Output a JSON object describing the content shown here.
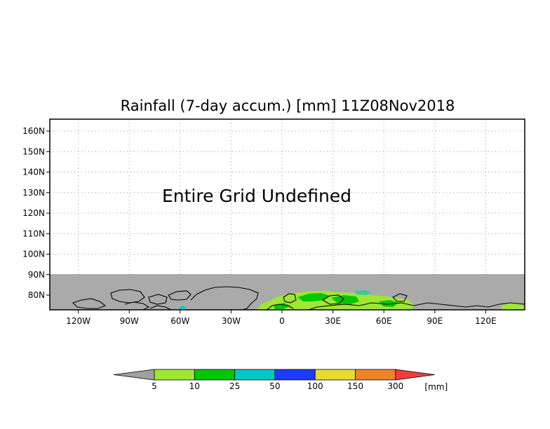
{
  "title": "Rainfall (7-day accum.) [mm] 11Z08Nov2018",
  "message": "Entire Grid Undefined",
  "y_ticks": [
    {
      "label": "160N",
      "lat": 160
    },
    {
      "label": "150N",
      "lat": 150
    },
    {
      "label": "140N",
      "lat": 140
    },
    {
      "label": "130N",
      "lat": 130
    },
    {
      "label": "120N",
      "lat": 120
    },
    {
      "label": "110N",
      "lat": 110
    },
    {
      "label": "100N",
      "lat": 100
    },
    {
      "label": "90N",
      "lat": 90
    },
    {
      "label": "80N",
      "lat": 80
    }
  ],
  "x_ticks": [
    {
      "label": "120W",
      "lon": -120
    },
    {
      "label": "90W",
      "lon": -90
    },
    {
      "label": "60W",
      "lon": -60
    },
    {
      "label": "30W",
      "lon": -30
    },
    {
      "label": "0",
      "lon": 0
    },
    {
      "label": "30E",
      "lon": 30
    },
    {
      "label": "60E",
      "lon": 60
    },
    {
      "label": "90E",
      "lon": 90
    },
    {
      "label": "120E",
      "lon": 120
    }
  ],
  "colorbar": {
    "unit": "[mm]",
    "below_color": "#a0a0a0",
    "above_color": "#f03c3c",
    "bins": [
      {
        "color": "#a0e632",
        "label": "5"
      },
      {
        "color": "#00c800",
        "label": "10"
      },
      {
        "color": "#00c8c8",
        "label": "25"
      },
      {
        "color": "#1e3cff",
        "label": "50"
      },
      {
        "color": "#e6dc32",
        "label": "100"
      },
      {
        "color": "#f08228",
        "label": "150"
      },
      {
        "color": "",
        "label": "300"
      }
    ]
  },
  "colors": {
    "undefined_gray": "#aaaaaa",
    "grid_line": "#999999",
    "coastline": "#000000"
  }
}
